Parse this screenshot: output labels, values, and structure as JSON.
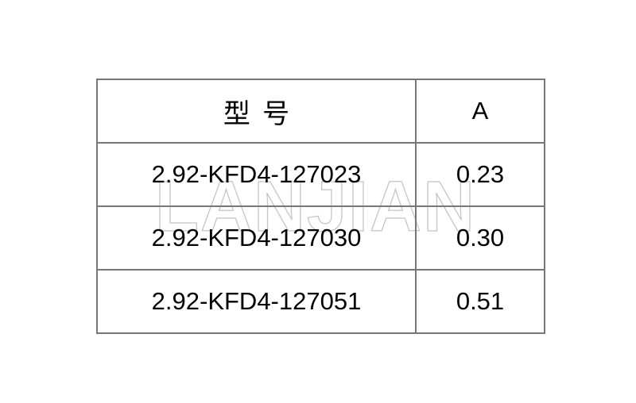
{
  "table": {
    "headers": {
      "model": "型号",
      "a": "A"
    },
    "rows": [
      {
        "model": "2.92-KFD4-127023",
        "a": "0.23"
      },
      {
        "model": "2.92-KFD4-127030",
        "a": "0.30"
      },
      {
        "model": "2.92-KFD4-127051",
        "a": "0.51"
      }
    ]
  },
  "watermark": {
    "text": "LANJIAN",
    "color": "#c6c6c6"
  },
  "colors": {
    "border": "#777777",
    "text": "#000000",
    "background": "#ffffff"
  }
}
